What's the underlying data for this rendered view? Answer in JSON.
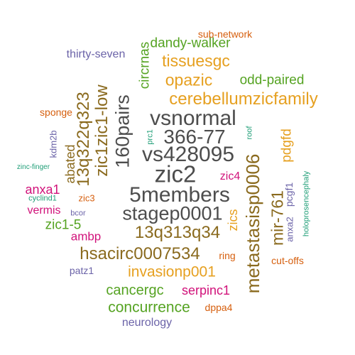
{
  "palette": {
    "dark_gray": "#4d4d4d",
    "brown": "#8a6a1e",
    "gold": "#e6a020",
    "green": "#55a322",
    "orange": "#d65f0e",
    "magenta": "#d1127a",
    "purple": "#6b63a8",
    "teal": "#1f9e77"
  },
  "words": [
    {
      "text": "5members",
      "color": "#4d4d4d"
    },
    {
      "text": "zic2",
      "color": "#4d4d4d"
    },
    {
      "text": "vs428095",
      "color": "#4d4d4d"
    },
    {
      "text": "vsnormal",
      "color": "#4d4d4d"
    },
    {
      "text": "366-77",
      "color": "#4d4d4d"
    },
    {
      "text": "stagep0001",
      "color": "#4d4d4d"
    },
    {
      "text": "160pairs",
      "color": "#4d4d4d"
    },
    {
      "text": "zic1zic1-low",
      "color": "#8a6a1e"
    },
    {
      "text": "13q322q323",
      "color": "#8a6a1e"
    },
    {
      "text": "13q313q34",
      "color": "#8a6a1e"
    },
    {
      "text": "hsacirc0007534",
      "color": "#8a6a1e"
    },
    {
      "text": "metastasisp0006",
      "color": "#8a6a1e"
    },
    {
      "text": "mir-761",
      "color": "#8a6a1e"
    },
    {
      "text": "abated",
      "color": "#8a6a1e"
    },
    {
      "text": "cerebellumzicfamily",
      "color": "#e6a020"
    },
    {
      "text": "opazic",
      "color": "#e6a020"
    },
    {
      "text": "tissuesgc",
      "color": "#e6a020"
    },
    {
      "text": "pdgfd",
      "color": "#e6a020"
    },
    {
      "text": "invasionp001",
      "color": "#e6a020"
    },
    {
      "text": "zics",
      "color": "#e6a020"
    },
    {
      "text": "odd-paired",
      "color": "#55a322"
    },
    {
      "text": "dandy-walker",
      "color": "#55a322"
    },
    {
      "text": "circrnas",
      "color": "#55a322"
    },
    {
      "text": "cancergc",
      "color": "#55a322"
    },
    {
      "text": "concurrence",
      "color": "#55a322"
    },
    {
      "text": "zic1-5",
      "color": "#55a322"
    },
    {
      "text": "sub-network",
      "color": "#d65f0e"
    },
    {
      "text": "sponge",
      "color": "#d65f0e"
    },
    {
      "text": "zic3",
      "color": "#d65f0e"
    },
    {
      "text": "ring",
      "color": "#d65f0e"
    },
    {
      "text": "cut-offs",
      "color": "#d65f0e"
    },
    {
      "text": "dppa4",
      "color": "#d65f0e"
    },
    {
      "text": "anxa1",
      "color": "#d1127a"
    },
    {
      "text": "vermis",
      "color": "#d1127a"
    },
    {
      "text": "ambp",
      "color": "#d1127a"
    },
    {
      "text": "zic4",
      "color": "#d1127a"
    },
    {
      "text": "serpinc1",
      "color": "#d1127a"
    },
    {
      "text": "thirty-seven",
      "color": "#6b63a8"
    },
    {
      "text": "kdm2b",
      "color": "#6b63a8"
    },
    {
      "text": "bcor",
      "color": "#6b63a8"
    },
    {
      "text": "anxa2",
      "color": "#6b63a8"
    },
    {
      "text": "pcgf1",
      "color": "#6b63a8"
    },
    {
      "text": "patz1",
      "color": "#6b63a8"
    },
    {
      "text": "neurology",
      "color": "#6b63a8"
    },
    {
      "text": "roof",
      "color": "#1f9e77"
    },
    {
      "text": "prc1",
      "color": "#1f9e77"
    },
    {
      "text": "zinc-finger",
      "color": "#1f9e77"
    },
    {
      "text": "cyclind1",
      "color": "#1f9e77"
    },
    {
      "text": "holoprosencephaly",
      "color": "#1f9e77"
    }
  ]
}
